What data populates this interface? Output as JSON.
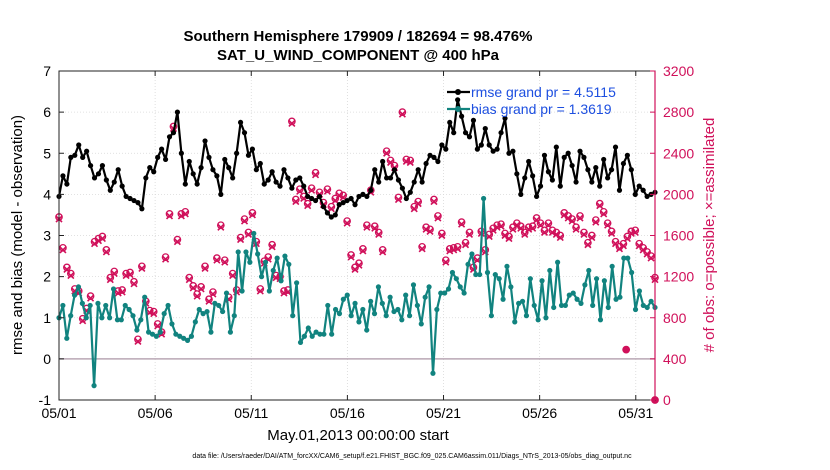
{
  "chart_data": {
    "type": "line",
    "title": "Southern Hemisphere 179909 / 182694 = 98.476%",
    "subtitle": "SAT_U_WIND_COMPONENT @ 400 hPa",
    "xlabel": "May.01,2013 00:00:00 start",
    "ylabel": "rmse and bias (model - observation)",
    "ylabel_right": "# of obs: o=possible; ×=assimilated",
    "x_tick_labels": [
      "05/01",
      "05/06",
      "05/11",
      "05/16",
      "05/21",
      "05/26",
      "05/31"
    ],
    "xlim": [
      0,
      31
    ],
    "ylim": [
      -1,
      7
    ],
    "y_ticks": [
      -1,
      0,
      1,
      2,
      3,
      4,
      5,
      6,
      7
    ],
    "ylim_right": [
      0,
      3200
    ],
    "y_ticks_right": [
      0,
      400,
      800,
      1200,
      1600,
      2000,
      2400,
      2800,
      3200
    ],
    "grid": true,
    "legend_position": "top-right",
    "colors": {
      "rmse": "#000000",
      "bias": "#11837f",
      "obs": "#d0105a",
      "legend_text": "#1d4fe0",
      "zero_line": "#b9a7b4"
    },
    "series": [
      {
        "name": "rmse grand pr = 4.5115",
        "role": "rmse",
        "values": [
          3.95,
          4.45,
          4.25,
          4.9,
          4.95,
          5.2,
          4.9,
          5.05,
          4.7,
          4.4,
          4.5,
          4.7,
          4.35,
          4.1,
          4.3,
          4.6,
          4.2,
          3.95,
          3.9,
          3.85,
          3.8,
          3.65,
          4.4,
          4.65,
          4.55,
          4.9,
          5.1,
          4.85,
          5.4,
          5.5,
          6.0,
          5.0,
          4.25,
          4.8,
          4.5,
          4.25,
          4.65,
          5.3,
          4.9,
          4.6,
          4.45,
          4.0,
          4.85,
          4.65,
          4.4,
          5.0,
          5.75,
          5.5,
          4.95,
          5.1,
          4.6,
          4.75,
          4.25,
          4.35,
          4.55,
          4.3,
          4.2,
          4.6,
          4.4,
          4.15,
          4.35,
          4.4,
          4.2,
          3.95,
          3.9,
          3.85,
          3.95,
          3.7,
          3.55,
          3.45,
          3.5,
          3.75,
          3.8,
          3.85,
          3.9,
          3.75,
          3.95,
          4.0,
          3.95,
          4.1,
          4.6,
          4.3,
          4.8,
          4.4,
          4.4,
          4.6,
          4.35,
          4.15,
          3.9,
          4.05,
          4.3,
          4.6,
          4.3,
          4.75,
          4.95,
          4.9,
          4.8,
          5.2,
          5.1,
          5.75,
          5.5,
          6.3,
          5.9,
          5.5,
          5.4,
          5.8,
          5.1,
          5.2,
          5.6,
          5.2,
          5.05,
          5.1,
          5.5,
          5.85,
          5.0,
          5.05,
          4.5,
          4.0,
          4.4,
          4.8,
          4.45,
          3.95,
          4.2,
          4.95,
          4.55,
          4.35,
          5.15,
          4.2,
          4.9,
          5.0,
          4.7,
          4.3,
          5.05,
          4.9,
          4.6,
          4.3,
          4.65,
          4.2,
          4.85,
          4.4,
          4.6,
          5.15,
          4.1,
          4.75,
          4.95,
          4.6,
          4.0,
          4.2,
          4.1,
          3.95,
          4.0,
          4.05
        ]
      },
      {
        "name": "bias grand pr = 1.3619",
        "role": "bias",
        "values": [
          1.0,
          1.3,
          0.5,
          1.05,
          1.55,
          1.75,
          1.35,
          1.0,
          1.3,
          -0.65,
          1.35,
          1.0,
          1.3,
          1.0,
          1.7,
          0.95,
          0.95,
          1.3,
          1.2,
          1.05,
          0.7,
          0.95,
          1.5,
          0.65,
          0.6,
          0.55,
          0.65,
          1.1,
          1.3,
          0.85,
          0.6,
          0.55,
          0.5,
          0.45,
          0.55,
          0.9,
          1.2,
          1.1,
          1.15,
          0.65,
          1.35,
          1.3,
          1.15,
          1.6,
          0.65,
          1.05,
          2.6,
          1.65,
          2.6,
          2.35,
          3.05,
          2.55,
          2.0,
          2.35,
          1.65,
          2.15,
          2.45,
          1.9,
          2.5,
          2.3,
          1.05,
          1.85,
          0.4,
          0.55,
          0.75,
          0.55,
          0.65,
          0.6,
          0.6,
          1.3,
          0.6,
          1.2,
          1.1,
          1.45,
          1.55,
          1.05,
          1.35,
          0.9,
          1.2,
          0.7,
          1.4,
          1.1,
          1.75,
          1.35,
          1.05,
          1.5,
          1.15,
          1.2,
          0.95,
          1.55,
          1.05,
          1.8,
          1.3,
          0.85,
          1.5,
          1.75,
          -0.35,
          1.2,
          1.6,
          1.6,
          1.7,
          2.1,
          1.95,
          1.75,
          1.6,
          2.3,
          2.55,
          2.05,
          2.05,
          3.9,
          2.1,
          1.05,
          2.05,
          1.95,
          1.45,
          2.25,
          1.75,
          0.9,
          1.35,
          1.4,
          1.05,
          1.95,
          1.3,
          0.95,
          1.9,
          1.0,
          2.15,
          1.25,
          2.35,
          1.3,
          1.3,
          1.55,
          1.6,
          1.45,
          1.35,
          1.8,
          2.15,
          1.3,
          1.95,
          0.95,
          1.9,
          1.25,
          2.25,
          1.45,
          1.5,
          2.45,
          2.45,
          2.1,
          1.2,
          1.65,
          1.3,
          1.25,
          1.4,
          1.25
        ]
      }
    ],
    "obs_possible": [
      1780,
      1480,
      1290,
      1230,
      1080,
      1060,
      790,
      890,
      1010,
      1540,
      1570,
      1590,
      1460,
      1190,
      1250,
      1060,
      1070,
      1230,
      1240,
      1150,
      590,
      1300,
      960,
      870,
      860,
      740,
      660,
      1390,
      1810,
      2660,
      1560,
      1810,
      1830,
      1190,
      1110,
      1030,
      1100,
      1300,
      980,
      1050,
      1380,
      1700,
      1360,
      1000,
      1230,
      1070,
      1580,
      1760,
      1630,
      1820,
      1540,
      1080,
      1350,
      1390,
      1510,
      1210,
      1200,
      1060,
      1070,
      2710,
      1950,
      2050,
      1980,
      1910,
      2060,
      2210,
      2020,
      1920,
      2050,
      1880,
      1960,
      2010,
      1990,
      1740,
      1410,
      1290,
      1330,
      1470,
      1700,
      2040,
      1690,
      1630,
      1460,
      2420,
      2330,
      2280,
      1970,
      2800,
      2340,
      2330,
      1880,
      1930,
      1490,
      1680,
      1660,
      1950,
      1790,
      1620,
      1360,
      1470,
      1480,
      1490,
      1730,
      1530,
      1630,
      1290,
      1380,
      1640,
      1460,
      1610,
      1670,
      1700,
      1710,
      1620,
      1590,
      1680,
      1720,
      1690,
      1630,
      1680,
      1690,
      1770,
      1720,
      1650,
      1720,
      1650,
      1630,
      1600,
      1820,
      1790,
      1760,
      1680,
      1790,
      1630,
      1530,
      1600,
      1750,
      1910,
      1830,
      1720,
      1640,
      1540,
      1490,
      1520,
      1590,
      1640,
      1650,
      1520,
      1480,
      1440,
      1400,
      1190
    ],
    "obs_assimilated": [
      1760,
      1460,
      1270,
      1210,
      1060,
      1040,
      770,
      870,
      990,
      1520,
      1550,
      1570,
      1440,
      1170,
      1230,
      1040,
      1050,
      1210,
      1220,
      1130,
      570,
      1280,
      940,
      850,
      840,
      720,
      640,
      1370,
      1790,
      2640,
      1540,
      1790,
      1810,
      1170,
      1090,
      1010,
      1080,
      1280,
      960,
      1030,
      1360,
      1680,
      1340,
      980,
      1210,
      1050,
      1560,
      1740,
      1610,
      1800,
      1520,
      1060,
      1330,
      1370,
      1490,
      1190,
      1180,
      1040,
      1050,
      2690,
      1930,
      2030,
      1960,
      1890,
      2040,
      2190,
      2000,
      1900,
      2030,
      1860,
      1940,
      1990,
      1970,
      1720,
      1390,
      1270,
      1310,
      1450,
      1680,
      2020,
      1670,
      1610,
      1440,
      2400,
      2310,
      2260,
      1950,
      2780,
      2320,
      2310,
      1860,
      1910,
      1470,
      1660,
      1640,
      1930,
      1770,
      1600,
      1340,
      1450,
      1460,
      1470,
      1710,
      1510,
      1610,
      1270,
      1360,
      1620,
      1440,
      1590,
      1650,
      1680,
      1690,
      1600,
      1570,
      1660,
      1700,
      1670,
      1610,
      1660,
      1670,
      1750,
      1700,
      1630,
      1700,
      1630,
      1610,
      1580,
      1800,
      1770,
      1740,
      1660,
      1770,
      1610,
      1510,
      1580,
      1730,
      1890,
      1810,
      1700,
      1620,
      1520,
      1470,
      1500,
      1570,
      1620,
      1630,
      1500,
      1460,
      1420,
      1380,
      1170
    ],
    "obs_extra_points": [
      {
        "x": 29.5,
        "y": 490
      },
      {
        "x": 31.0,
        "y": 0
      }
    ]
  },
  "footer": "data file: /Users/raeder/DAI/ATM_forcXX/CAM6_setup/f.e21.FHIST_BGC.f09_025.CAM6assim.011/Diags_NTrS_2013-05/obs_diag_output.nc"
}
